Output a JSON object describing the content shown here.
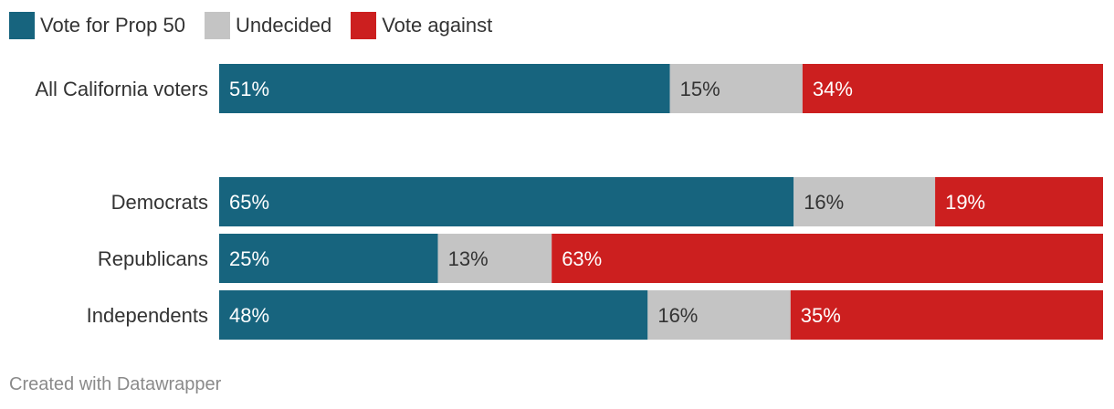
{
  "chart_data": {
    "type": "bar",
    "orientation": "horizontal",
    "stacked": true,
    "categories": [
      "All California voters",
      "Democrats",
      "Republicans",
      "Independents"
    ],
    "series": [
      {
        "name": "Vote for Prop 50",
        "color": "#17647e",
        "values": [
          51,
          65,
          25,
          48
        ],
        "labels": [
          "51%",
          "65%",
          "25%",
          "48%"
        ]
      },
      {
        "name": "Undecided",
        "color": "#c4c4c4",
        "values": [
          15,
          16,
          13,
          16
        ],
        "labels": [
          "15%",
          "16%",
          "13%",
          "16%"
        ]
      },
      {
        "name": "Vote against",
        "color": "#cc1f1f",
        "values": [
          34,
          19,
          63,
          35
        ],
        "labels": [
          "34%",
          "19%",
          "63%",
          "35%"
        ]
      }
    ],
    "xlim": [
      0,
      100
    ],
    "legend_position": "top-left",
    "grid": false
  },
  "footer": {
    "credit": "Created with Datawrapper"
  }
}
